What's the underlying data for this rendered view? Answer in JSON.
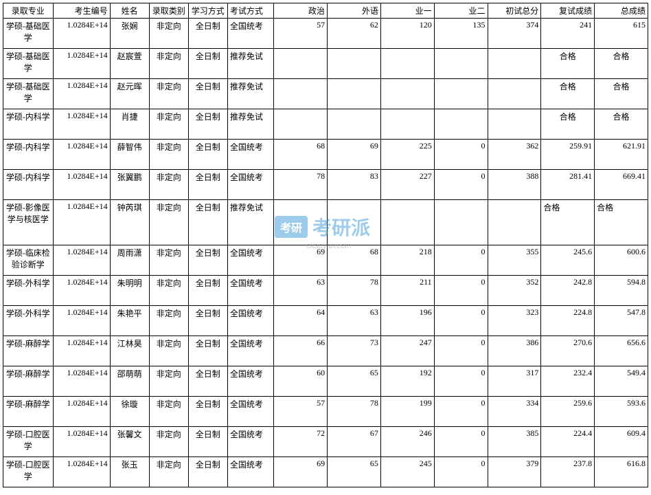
{
  "table": {
    "columns": [
      {
        "label": "录取专业",
        "class": "c0"
      },
      {
        "label": "考生编号",
        "class": "c1"
      },
      {
        "label": "姓名",
        "class": "c2"
      },
      {
        "label": "录取类别",
        "class": "c3"
      },
      {
        "label": "学习方式",
        "class": "c4"
      },
      {
        "label": "考试方式",
        "class": "c5"
      },
      {
        "label": "政治",
        "class": "c6"
      },
      {
        "label": "外语",
        "class": "c7"
      },
      {
        "label": "业一",
        "class": "c8"
      },
      {
        "label": "业二",
        "class": "c9"
      },
      {
        "label": "初试总分",
        "class": "c10"
      },
      {
        "label": "复试成绩",
        "class": "c11"
      },
      {
        "label": "总成绩",
        "class": "c12"
      }
    ],
    "rows": [
      {
        "tall": true,
        "cells": [
          "学硕-基础医学",
          "1.0284E+14",
          "张娴",
          "非定向",
          "全日制",
          "全国统考",
          "57",
          "62",
          "120",
          "135",
          "374",
          "241",
          "615"
        ]
      },
      {
        "tall": true,
        "cells": [
          "学硕-基础医学",
          "1.0284E+14",
          "赵宸萱",
          "非定向",
          "全日制",
          "推荐免试",
          "",
          "",
          "",
          "",
          "",
          "合格",
          "合格"
        ],
        "qualify": true
      },
      {
        "tall": true,
        "cells": [
          "学硕-基础医学",
          "1.0284E+14",
          "赵元晖",
          "非定向",
          "全日制",
          "推荐免试",
          "",
          "",
          "",
          "",
          "",
          "合格",
          "合格"
        ],
        "qualify": true
      },
      {
        "tall": true,
        "cells": [
          "学硕-内科学",
          "1.0284E+14",
          "肖捷",
          "非定向",
          "全日制",
          "推荐免试",
          "",
          "",
          "",
          "",
          "",
          "合格",
          "合格"
        ],
        "qualify": true
      },
      {
        "tall": true,
        "cells": [
          "学硕-内科学",
          "1.0284E+14",
          "薛智伟",
          "非定向",
          "全日制",
          "全国统考",
          "68",
          "69",
          "225",
          "0",
          "362",
          "259.91",
          "621.91"
        ]
      },
      {
        "tall": true,
        "cells": [
          "学硕-内科学",
          "1.0284E+14",
          "张翼鹏",
          "非定向",
          "全日制",
          "全国统考",
          "78",
          "83",
          "227",
          "0",
          "388",
          "281.41",
          "669.41"
        ]
      },
      {
        "tall": true,
        "tall3": true,
        "cells": [
          "学硕-影像医学与核医学",
          "1.0284E+14",
          "钟芮琪",
          "非定向",
          "全日制",
          "推荐免试",
          "",
          "",
          "",
          "",
          "",
          "合格",
          "合格"
        ],
        "qualify_left": true
      },
      {
        "tall": true,
        "cells": [
          "学硕-临床检验诊断学",
          "1.0284E+14",
          "周雨潇",
          "非定向",
          "全日制",
          "全国统考",
          "69",
          "68",
          "218",
          "0",
          "355",
          "245.6",
          "600.6"
        ]
      },
      {
        "tall": true,
        "cells": [
          "学硕-外科学",
          "1.0284E+14",
          "朱明明",
          "非定向",
          "全日制",
          "全国统考",
          "63",
          "78",
          "211",
          "0",
          "352",
          "242.8",
          "594.8"
        ]
      },
      {
        "tall": true,
        "cells": [
          "学硕-外科学",
          "1.0284E+14",
          "朱艳平",
          "非定向",
          "全日制",
          "全国统考",
          "64",
          "63",
          "196",
          "0",
          "323",
          "224.8",
          "547.8"
        ]
      },
      {
        "tall": true,
        "cells": [
          "学硕-麻醉学",
          "1.0284E+14",
          "江林昊",
          "非定向",
          "全日制",
          "全国统考",
          "66",
          "73",
          "247",
          "0",
          "386",
          "270.6",
          "656.6"
        ]
      },
      {
        "tall": true,
        "cells": [
          "学硕-麻醉学",
          "1.0284E+14",
          "邵萌萌",
          "非定向",
          "全日制",
          "全国统考",
          "60",
          "65",
          "192",
          "0",
          "317",
          "232.4",
          "549.4"
        ]
      },
      {
        "tall": true,
        "cells": [
          "学硕-麻醉学",
          "1.0284E+14",
          "徐璇",
          "非定向",
          "全日制",
          "全国统考",
          "57",
          "78",
          "199",
          "0",
          "334",
          "259.6",
          "593.6"
        ]
      },
      {
        "tall": true,
        "cells": [
          "学硕-口腔医学",
          "1.0284E+14",
          "张馨文",
          "非定向",
          "全日制",
          "全国统考",
          "72",
          "67",
          "246",
          "0",
          "385",
          "224.4",
          "609.4"
        ]
      },
      {
        "tall": true,
        "cells": [
          "学硕-口腔医学",
          "1.0284E+14",
          "张玉",
          "非定向",
          "全日制",
          "全国统考",
          "69",
          "65",
          "245",
          "0",
          "379",
          "237.8",
          "616.8"
        ]
      }
    ],
    "border_color": "#000000",
    "background_color": "#ffffff",
    "font_size": 12
  },
  "watermark": {
    "badge": "考研",
    "text": "考研派",
    "url": "okaoyan.com",
    "badge_bg": "#3b99d8",
    "text_color": "#3b99d8",
    "url_color": "#999999"
  }
}
